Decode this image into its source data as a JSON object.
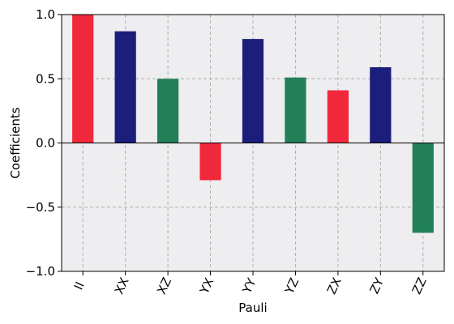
{
  "chart_data": {
    "type": "bar",
    "xlabel": "Pauli",
    "ylabel": "Coefficients",
    "ylim": [
      -1.0,
      1.0
    ],
    "yticks": [
      -1.0,
      -0.5,
      0.0,
      0.5,
      1.0
    ],
    "ytick_labels": [
      "−1.0",
      "−0.5",
      "0.0",
      "0.5",
      "1.0"
    ],
    "grid": true,
    "categories": [
      "II",
      "XX",
      "XZ",
      "YX",
      "YY",
      "YZ",
      "ZX",
      "ZY",
      "ZZ"
    ],
    "values": [
      1.0,
      0.87,
      0.5,
      -0.29,
      0.81,
      0.51,
      0.41,
      0.59,
      -0.7
    ],
    "bar_colors": [
      "#f0283c",
      "#1b1e7a",
      "#228058",
      "#f0283c",
      "#1b1e7a",
      "#228058",
      "#f0283c",
      "#1b1e7a",
      "#228058"
    ],
    "plot_background": "#eeedef"
  }
}
